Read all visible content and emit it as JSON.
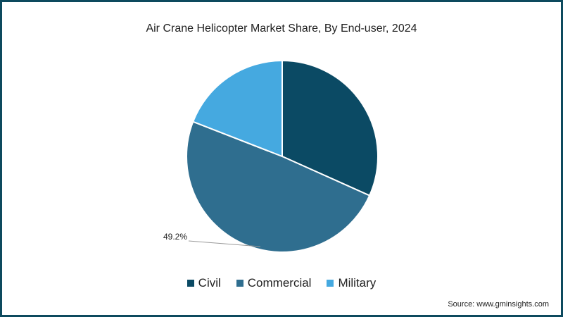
{
  "chart_data": {
    "type": "pie",
    "title": "Air Crane Helicopter Market Share, By End-user, 2024",
    "categories": [
      "Civil",
      "Commercial",
      "Military"
    ],
    "values": [
      31.7,
      49.2,
      19.1
    ],
    "colors": [
      "#0b4a64",
      "#2f6e8f",
      "#45a9e0"
    ],
    "data_labels": [
      {
        "category": "Commercial",
        "text": "49.2%"
      }
    ],
    "legend_position": "bottom",
    "source": "Source: www.gminsights.com"
  },
  "legend": [
    {
      "label": "Civil",
      "color": "#0b4a64"
    },
    {
      "label": "Commercial",
      "color": "#2f6e8f"
    },
    {
      "label": "Military",
      "color": "#45a9e0"
    }
  ],
  "labels": {
    "commercial": "49.2%"
  },
  "title": "Air Crane Helicopter Market Share, By End-user, 2024",
  "source": "Source: www.gminsights.com"
}
